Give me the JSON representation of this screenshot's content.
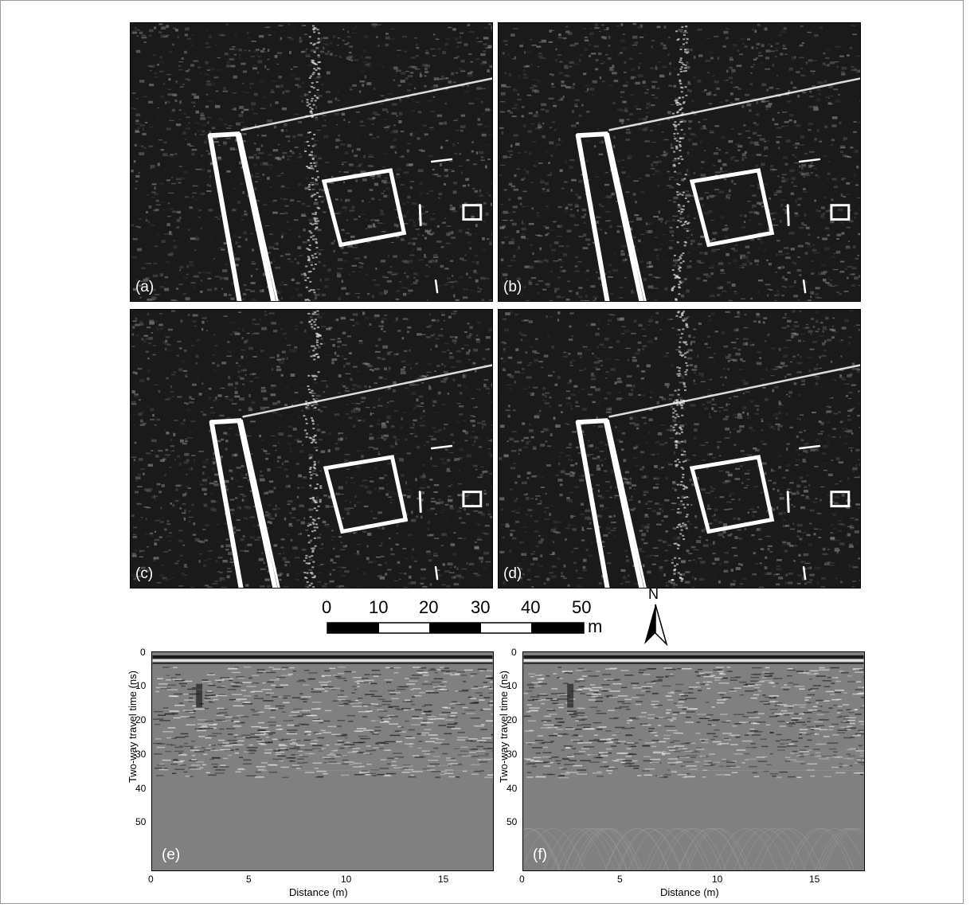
{
  "panels": [
    {
      "label": "(a)"
    },
    {
      "label": "(b)"
    },
    {
      "label": "(c)"
    },
    {
      "label": "(d)"
    }
  ],
  "scale_bar": {
    "ticks": [
      "0",
      "10",
      "20",
      "30",
      "40",
      "50"
    ],
    "unit": "m"
  },
  "north_arrow": {
    "label": "N"
  },
  "gpr": [
    {
      "label": "(e)",
      "y_axis_label": "Two-way travel time (ns)",
      "x_axis_label": "Distance (m)",
      "y_ticks": [
        "0",
        "10",
        "20",
        "30",
        "40",
        "50"
      ],
      "x_ticks": [
        "0",
        "5",
        "10",
        "15"
      ]
    },
    {
      "label": "(f)",
      "y_axis_label": "Two-way travel time (ns)",
      "x_axis_label": "Distance (m)",
      "y_ticks": [
        "0",
        "10",
        "20",
        "30",
        "40",
        "50"
      ],
      "x_ticks": [
        "0",
        "5",
        "10",
        "15"
      ]
    }
  ]
}
